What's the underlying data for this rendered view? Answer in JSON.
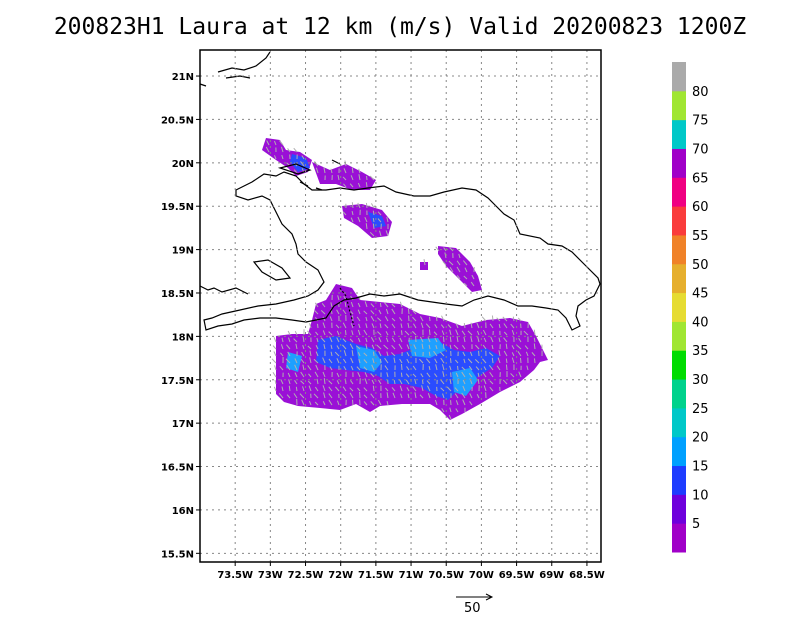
{
  "title": "200823H1 Laura at 12 km (m/s) Valid 20200823 1200Z",
  "map": {
    "lat_labels": [
      "21N",
      "20.5N",
      "20N",
      "19.5N",
      "19N",
      "18.5N",
      "18N",
      "17.5N",
      "17N",
      "16.5N",
      "16N",
      "15.5N"
    ],
    "lon_labels": [
      "73.5W",
      "73W",
      "72.5W",
      "72W",
      "71.5W",
      "71W",
      "70.5W",
      "70W",
      "69.5W",
      "69W",
      "68.5W"
    ],
    "lat_range": [
      15.4,
      21.3
    ],
    "lon_range": [
      -74.0,
      -68.3
    ],
    "grid": "dotted",
    "coastline_color": "#000000"
  },
  "colorbar": {
    "labels": [
      "5",
      "10",
      "15",
      "20",
      "25",
      "30",
      "35",
      "40",
      "45",
      "50",
      "55",
      "60",
      "65",
      "70",
      "75",
      "80"
    ],
    "colors": [
      "#a000c8",
      "#6e00dc",
      "#1e3cff",
      "#00a0ff",
      "#00c8c8",
      "#00d28c",
      "#00dc00",
      "#a0e632",
      "#e6dc32",
      "#e6af2d",
      "#f08228",
      "#fa3c3c",
      "#f00082",
      "#a000c8",
      "#00c8c8",
      "#a0e632",
      "#aaaaaa"
    ]
  },
  "reference_vector": {
    "label": "50"
  },
  "wind_region_colors": {
    "main": "#9a10d6",
    "mid": "#2a4cff",
    "light": "#1ea0ff",
    "vector": "#b0b0b0"
  }
}
